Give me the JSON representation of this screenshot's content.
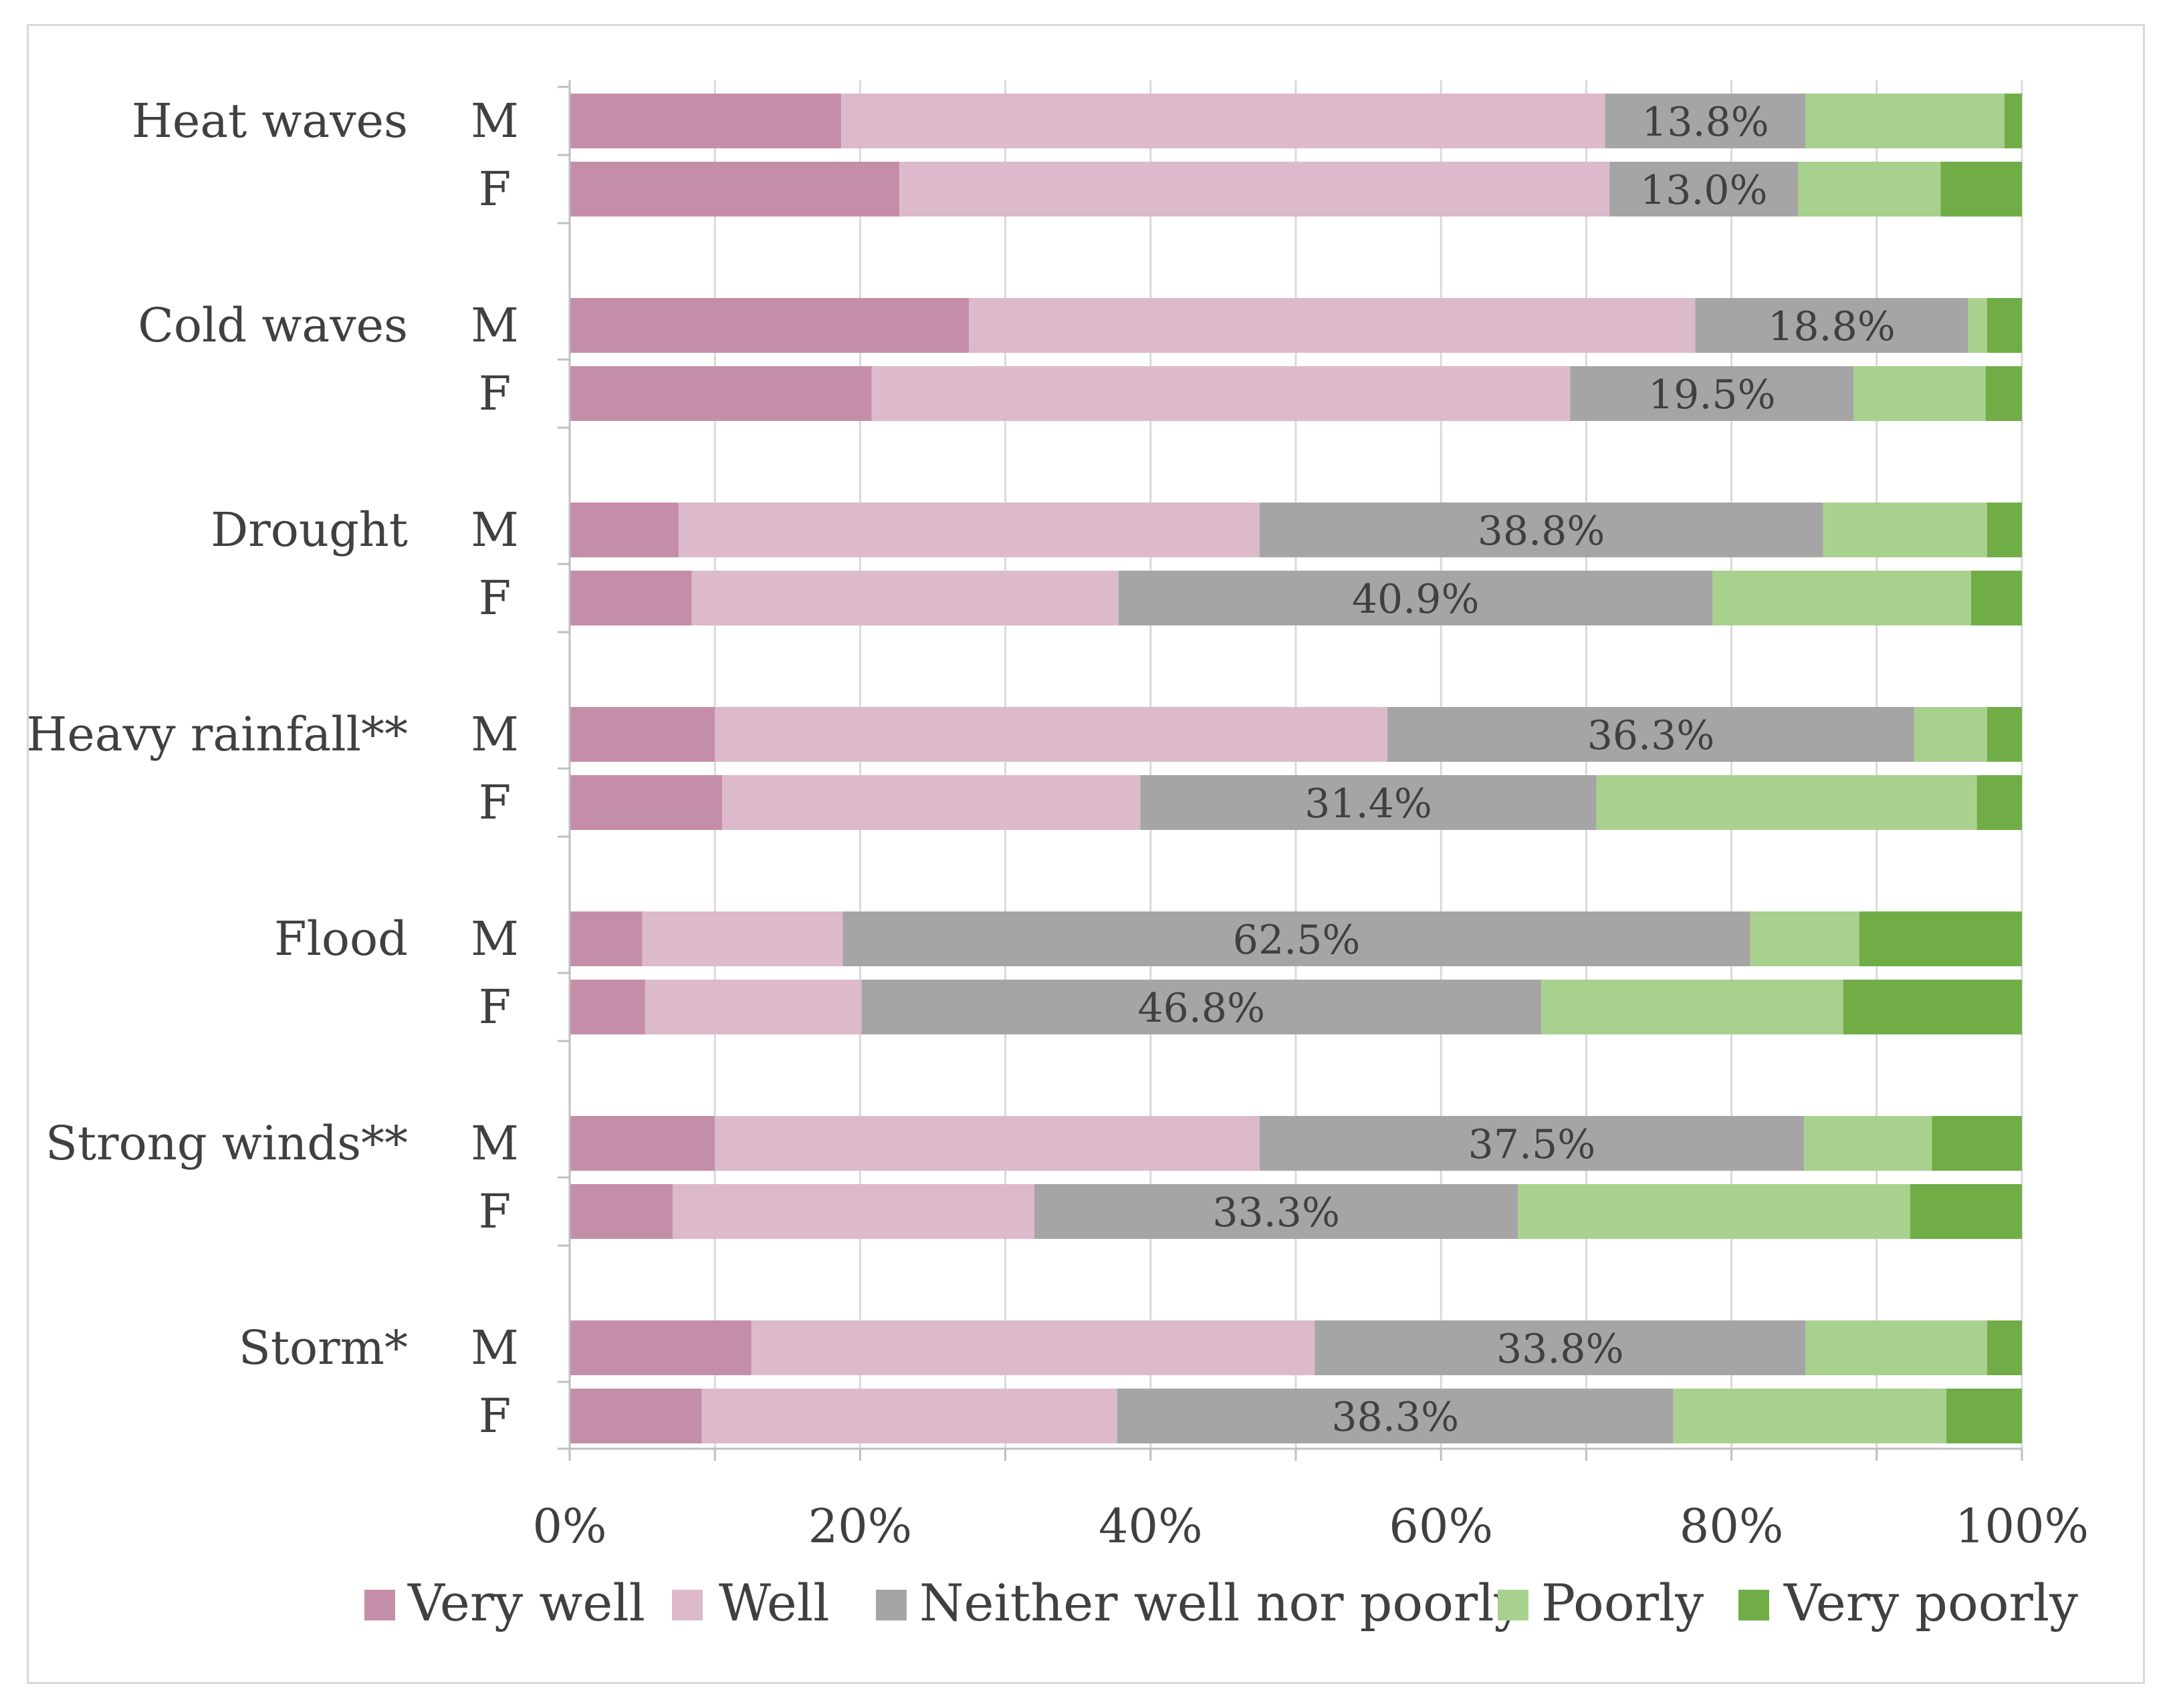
{
  "chart_data": {
    "type": "bar",
    "orientation": "horizontal",
    "stacked": true,
    "percent": true,
    "title": "",
    "xlabel": "",
    "ylabel": "",
    "xlim": [
      0,
      100
    ],
    "x_ticks": [
      "0%",
      "20%",
      "40%",
      "60%",
      "80%",
      "100%"
    ],
    "grid": true,
    "legend_position": "bottom",
    "series": [
      {
        "name": "Very well",
        "color": "#c48ea9"
      },
      {
        "name": "Well",
        "color": "#dcbacb"
      },
      {
        "name": "Neither well nor poorly",
        "color": "#a5a5a5"
      },
      {
        "name": "Poorly",
        "color": "#a9d18e"
      },
      {
        "name": "Very poorly",
        "color": "#70ad47"
      }
    ],
    "groups": [
      {
        "label": "Heat waves",
        "bars": [
          {
            "sex": "M",
            "values": [
              18.7,
              52.6,
              13.8,
              13.7,
              1.2
            ],
            "label": "13.8%"
          },
          {
            "sex": "F",
            "values": [
              22.7,
              48.9,
              13.0,
              9.8,
              5.6
            ],
            "label": "13.0%"
          }
        ]
      },
      {
        "label": "Cold waves",
        "bars": [
          {
            "sex": "M",
            "values": [
              27.5,
              50.0,
              18.8,
              1.3,
              2.4
            ],
            "label": "18.8%"
          },
          {
            "sex": "F",
            "values": [
              20.8,
              48.1,
              19.5,
              9.1,
              2.5
            ],
            "label": "19.5%"
          }
        ]
      },
      {
        "label": "Drought",
        "bars": [
          {
            "sex": "M",
            "values": [
              7.5,
              40.0,
              38.8,
              11.3,
              2.4
            ],
            "label": "38.8%"
          },
          {
            "sex": "F",
            "values": [
              8.4,
              29.4,
              40.9,
              17.8,
              3.5
            ],
            "label": "40.9%"
          }
        ]
      },
      {
        "label": "Heavy rainfall**",
        "bars": [
          {
            "sex": "M",
            "values": [
              10.0,
              46.3,
              36.3,
              5.0,
              2.4
            ],
            "label": "36.3%"
          },
          {
            "sex": "F",
            "values": [
              10.5,
              28.8,
              31.4,
              26.2,
              3.1
            ],
            "label": "31.4%"
          }
        ]
      },
      {
        "label": "Flood",
        "bars": [
          {
            "sex": "M",
            "values": [
              5.0,
              13.8,
              62.5,
              7.5,
              11.2
            ],
            "label": "62.5%"
          },
          {
            "sex": "F",
            "values": [
              5.2,
              14.9,
              46.8,
              20.8,
              12.3
            ],
            "label": "46.8%"
          }
        ]
      },
      {
        "label": "Strong winds**",
        "bars": [
          {
            "sex": "M",
            "values": [
              10.0,
              37.5,
              37.5,
              8.8,
              6.2
            ],
            "label": "37.5%"
          },
          {
            "sex": "F",
            "values": [
              7.1,
              24.9,
              33.3,
              27.0,
              7.7
            ],
            "label": "33.3%"
          }
        ]
      },
      {
        "label": "Storm*",
        "bars": [
          {
            "sex": "M",
            "values": [
              12.5,
              38.8,
              33.8,
              12.5,
              2.4
            ],
            "label": "33.8%"
          },
          {
            "sex": "F",
            "values": [
              9.1,
              28.6,
              38.3,
              18.8,
              5.2
            ],
            "label": "38.3%"
          }
        ]
      }
    ]
  }
}
